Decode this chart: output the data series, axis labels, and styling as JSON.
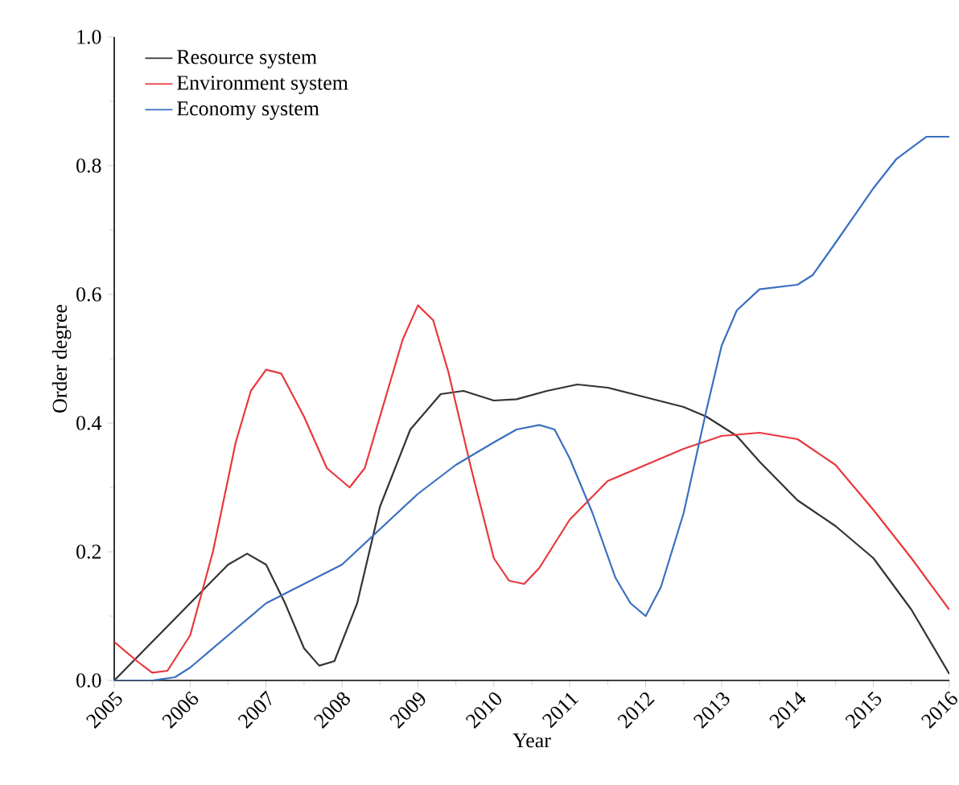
{
  "chart_data": {
    "type": "line",
    "xlabel": "Year",
    "ylabel": "Order degree",
    "xlim": [
      2005,
      2016
    ],
    "ylim": [
      0,
      1.0
    ],
    "xticks": [
      2005,
      2006,
      2007,
      2008,
      2009,
      2010,
      2011,
      2012,
      2013,
      2014,
      2015,
      2016
    ],
    "yticks": [
      {
        "value": 0,
        "label": "0.0"
      },
      0.2,
      0.4,
      0.6,
      0.8,
      {
        "value": 1,
        "label": "1.0"
      }
    ],
    "legend": "top left",
    "grid": false,
    "marker": "none",
    "line_style": "solid",
    "series": [
      {
        "name": "Resource system",
        "color": "#333333",
        "x": [
          2005,
          2005.5,
          2006,
          2006.5,
          2006.75,
          2007,
          2007.25,
          2007.5,
          2007.7,
          2007.9,
          2008.2,
          2008.5,
          2008.9,
          2009.3,
          2009.6,
          2010,
          2010.3,
          2010.7,
          2011.1,
          2011.5,
          2012,
          2012.5,
          2012.8,
          2013.2,
          2013.5,
          2014,
          2014.5,
          2015,
          2015.5,
          2016
        ],
        "values": [
          0,
          0.06,
          0.12,
          0.18,
          0.197,
          0.18,
          0.12,
          0.05,
          0.023,
          0.03,
          0.12,
          0.27,
          0.39,
          0.445,
          0.45,
          0.435,
          0.437,
          0.45,
          0.46,
          0.455,
          0.44,
          0.425,
          0.41,
          0.38,
          0.34,
          0.28,
          0.24,
          0.19,
          0.11,
          0.01
        ]
      },
      {
        "name": "Environment system",
        "color": "#e8383d",
        "x": [
          2005,
          2005.3,
          2005.5,
          2005.7,
          2006,
          2006.3,
          2006.6,
          2006.8,
          2007,
          2007.2,
          2007.5,
          2007.8,
          2008,
          2008.1,
          2008.3,
          2008.5,
          2008.8,
          2009,
          2009.2,
          2009.4,
          2009.7,
          2010,
          2010.2,
          2010.4,
          2010.6,
          2011,
          2011.5,
          2012,
          2012.5,
          2013,
          2013.5,
          2014,
          2014.5,
          2015,
          2015.5,
          2016
        ],
        "values": [
          0.06,
          0.03,
          0.012,
          0.015,
          0.07,
          0.2,
          0.37,
          0.45,
          0.483,
          0.477,
          0.41,
          0.33,
          0.31,
          0.3,
          0.33,
          0.41,
          0.53,
          0.583,
          0.56,
          0.48,
          0.33,
          0.19,
          0.155,
          0.15,
          0.175,
          0.25,
          0.31,
          0.335,
          0.36,
          0.38,
          0.385,
          0.375,
          0.335,
          0.265,
          0.19,
          0.11
        ]
      },
      {
        "name": "Economy system",
        "color": "#3a6fc0",
        "x": [
          2005,
          2005.5,
          2005.8,
          2006,
          2006.5,
          2007,
          2007.5,
          2008,
          2008.5,
          2009,
          2009.5,
          2010,
          2010.3,
          2010.6,
          2010.8,
          2011,
          2011.3,
          2011.6,
          2011.8,
          2012,
          2012.2,
          2012.5,
          2012.8,
          2013,
          2013.2,
          2013.5,
          2014,
          2014.2,
          2014.5,
          2015,
          2015.3,
          2015.7,
          2016
        ],
        "values": [
          0,
          0,
          0.005,
          0.02,
          0.07,
          0.12,
          0.15,
          0.18,
          0.235,
          0.29,
          0.335,
          0.37,
          0.39,
          0.397,
          0.39,
          0.345,
          0.26,
          0.16,
          0.12,
          0.1,
          0.145,
          0.26,
          0.42,
          0.52,
          0.575,
          0.608,
          0.615,
          0.63,
          0.68,
          0.765,
          0.81,
          0.845,
          0.845
        ]
      }
    ]
  }
}
